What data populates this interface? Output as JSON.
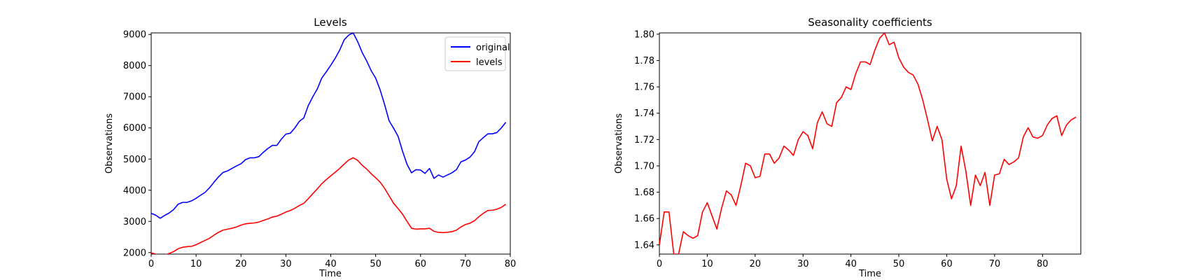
{
  "colors": {
    "original": "#0000ff",
    "levels": "#ff0000",
    "axes": "#000000",
    "legend_edge": "#cccccc"
  },
  "chart_data": [
    {
      "type": "line",
      "title": "Levels",
      "xlabel": "Time",
      "ylabel": "Observations",
      "xlim": [
        0,
        80
      ],
      "ylim": [
        1950,
        9050
      ],
      "xticks": [
        0,
        10,
        20,
        30,
        40,
        50,
        60,
        70,
        80
      ],
      "yticks": [
        2000,
        3000,
        4000,
        5000,
        6000,
        7000,
        8000,
        9000
      ],
      "grid": false,
      "legend": "top-right",
      "series": [
        {
          "name": "original",
          "color": "#0000ff",
          "x": [
            0,
            1,
            2,
            3,
            4,
            5,
            6,
            7,
            8,
            9,
            10,
            11,
            12,
            13,
            14,
            15,
            16,
            17,
            18,
            19,
            20,
            21,
            22,
            23,
            24,
            25,
            26,
            27,
            28,
            29,
            30,
            31,
            32,
            33,
            34,
            35,
            36,
            37,
            38,
            39,
            40,
            41,
            42,
            43,
            44,
            45,
            46,
            47,
            48,
            49,
            50,
            51,
            52,
            53,
            54,
            55,
            56,
            57,
            58,
            59,
            60,
            61,
            62,
            63,
            64,
            65,
            66,
            67,
            68,
            69,
            70,
            71,
            72,
            73,
            74,
            75,
            76,
            77,
            78,
            79
          ],
          "y": [
            3260,
            3200,
            3100,
            3190,
            3270,
            3380,
            3550,
            3610,
            3610,
            3660,
            3740,
            3840,
            3930,
            4080,
            4260,
            4430,
            4570,
            4620,
            4700,
            4780,
            4850,
            4980,
            5040,
            5040,
            5080,
            5220,
            5340,
            5440,
            5440,
            5640,
            5800,
            5830,
            6000,
            6210,
            6320,
            6720,
            7000,
            7250,
            7600,
            7800,
            8010,
            8240,
            8500,
            8830,
            8980,
            9050,
            8770,
            8420,
            8150,
            7840,
            7600,
            7220,
            6750,
            6230,
            5990,
            5730,
            5250,
            4830,
            4560,
            4660,
            4650,
            4540,
            4700,
            4380,
            4490,
            4420,
            4490,
            4560,
            4660,
            4910,
            4970,
            5060,
            5230,
            5560,
            5690,
            5810,
            5810,
            5850,
            6000,
            6180
          ]
        },
        {
          "name": "levels",
          "color": "#ff0000",
          "x": [
            0,
            1,
            2,
            3,
            4,
            5,
            6,
            7,
            8,
            9,
            10,
            11,
            12,
            13,
            14,
            15,
            16,
            17,
            18,
            19,
            20,
            21,
            22,
            23,
            24,
            25,
            26,
            27,
            28,
            29,
            30,
            31,
            32,
            33,
            34,
            35,
            36,
            37,
            38,
            39,
            40,
            41,
            42,
            43,
            44,
            45,
            46,
            47,
            48,
            49,
            50,
            51,
            52,
            53,
            54,
            55,
            56,
            57,
            58,
            59,
            60,
            61,
            62,
            63,
            64,
            65,
            66,
            67,
            68,
            69,
            70,
            71,
            72,
            73,
            74,
            75,
            76,
            77,
            78,
            79
          ],
          "y": [
            1990,
            1950,
            1890,
            1920,
            1970,
            2030,
            2120,
            2170,
            2190,
            2200,
            2250,
            2320,
            2390,
            2460,
            2560,
            2650,
            2720,
            2750,
            2780,
            2820,
            2880,
            2920,
            2940,
            2950,
            2980,
            3030,
            3080,
            3140,
            3170,
            3230,
            3300,
            3350,
            3420,
            3510,
            3580,
            3730,
            3890,
            4040,
            4210,
            4340,
            4460,
            4580,
            4700,
            4840,
            4970,
            5040,
            4960,
            4800,
            4680,
            4530,
            4400,
            4260,
            4060,
            3820,
            3580,
            3410,
            3230,
            3000,
            2780,
            2750,
            2760,
            2760,
            2780,
            2680,
            2650,
            2640,
            2650,
            2670,
            2720,
            2820,
            2900,
            2940,
            3020,
            3150,
            3260,
            3350,
            3360,
            3390,
            3450,
            3550
          ]
        }
      ]
    },
    {
      "type": "line",
      "title": "Seasonality coefficients",
      "xlabel": "Time",
      "ylabel": "Observations",
      "xlim": [
        0,
        88
      ],
      "ylim": [
        1.633,
        1.801
      ],
      "xticks": [
        0,
        10,
        20,
        30,
        40,
        50,
        60,
        70,
        80
      ],
      "yticks": [
        1.64,
        1.66,
        1.68,
        1.7,
        1.72,
        1.74,
        1.76,
        1.78,
        1.8
      ],
      "grid": false,
      "series": [
        {
          "color": "#ff0000",
          "x": [
            0,
            1,
            2,
            3,
            4,
            5,
            6,
            7,
            8,
            9,
            10,
            11,
            12,
            13,
            14,
            15,
            16,
            17,
            18,
            19,
            20,
            21,
            22,
            23,
            24,
            25,
            26,
            27,
            28,
            29,
            30,
            31,
            32,
            33,
            34,
            35,
            36,
            37,
            38,
            39,
            40,
            41,
            42,
            43,
            44,
            45,
            46,
            47,
            48,
            49,
            50,
            51,
            52,
            53,
            54,
            55,
            56,
            57,
            58,
            59,
            60,
            61,
            62,
            63,
            64,
            65,
            66,
            67,
            68,
            69,
            70,
            71,
            72,
            73,
            74,
            75,
            76,
            77,
            78,
            79,
            80,
            81,
            82,
            83,
            84,
            85,
            86,
            87
          ],
          "y": [
            1.64,
            1.665,
            1.665,
            1.633,
            1.633,
            1.65,
            1.647,
            1.645,
            1.647,
            1.665,
            1.672,
            1.662,
            1.652,
            1.668,
            1.681,
            1.678,
            1.67,
            1.685,
            1.702,
            1.7,
            1.691,
            1.692,
            1.709,
            1.709,
            1.702,
            1.706,
            1.715,
            1.712,
            1.708,
            1.72,
            1.726,
            1.723,
            1.713,
            1.733,
            1.741,
            1.732,
            1.73,
            1.748,
            1.752,
            1.76,
            1.758,
            1.77,
            1.779,
            1.779,
            1.777,
            1.788,
            1.797,
            1.801,
            1.792,
            1.794,
            1.782,
            1.775,
            1.771,
            1.769,
            1.762,
            1.75,
            1.735,
            1.719,
            1.73,
            1.72,
            1.69,
            1.675,
            1.685,
            1.715,
            1.696,
            1.67,
            1.693,
            1.685,
            1.695,
            1.67,
            1.693,
            1.694,
            1.705,
            1.701,
            1.703,
            1.706,
            1.722,
            1.729,
            1.722,
            1.721,
            1.723,
            1.731,
            1.736,
            1.738,
            1.723,
            1.731,
            1.735,
            1.737
          ]
        }
      ]
    }
  ]
}
